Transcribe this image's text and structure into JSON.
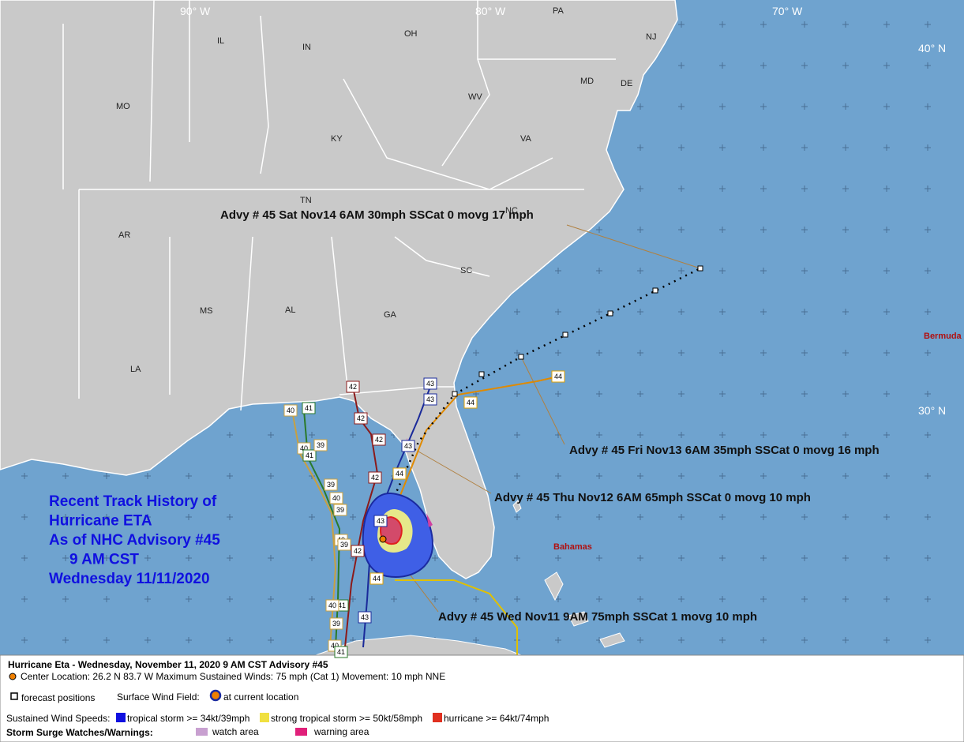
{
  "map": {
    "longitude_labels": [
      "90° W",
      "80° W",
      "70° W"
    ],
    "latitude_labels": [
      "40° N",
      "30° N"
    ],
    "state_labels": [
      "IL",
      "IN",
      "OH",
      "PA",
      "NJ",
      "MO",
      "MD",
      "DE",
      "WV",
      "KY",
      "VA",
      "TN",
      "NC",
      "AR",
      "SC",
      "MS",
      "AL",
      "GA",
      "LA"
    ],
    "place_labels": [
      "Bermuda",
      "Bahamas"
    ],
    "advisory_labels": [
      "Advy # 45 Sat Nov14 6AM  30mph SSCat 0 movg 17 mph",
      "Advy # 45 Fri Nov13 6AM  35mph SSCat 0 movg 16 mph",
      "Advy # 45 Thu Nov12 6AM  65mph SSCat 0 movg 10 mph",
      "Advy # 45 Wed Nov11 9AM  75mph SSCat 1 movg 10 mph"
    ],
    "track_history_note": [
      "Recent Track History of",
      "Hurricane ETA",
      "As of NHC Advisory #45",
      "9 AM CST",
      "Wednesday 11/11/2020"
    ],
    "track_point_labels": [
      "42",
      "42",
      "42",
      "42",
      "42",
      "43",
      "43",
      "43",
      "43",
      "43",
      "44",
      "44",
      "44",
      "44",
      "40",
      "41",
      "40",
      "41",
      "39",
      "39",
      "40",
      "39",
      "40",
      "39",
      "41",
      "40",
      "39",
      "40",
      "41"
    ]
  },
  "legend": {
    "title": "Hurricane Eta  -  Wednesday, November 11, 2020  9 AM CST   Advisory #45",
    "center_info": "Center Location: 26.2 N  83.7 W  Maximum Sustained Winds: 75 mph (Cat 1) Movement: 10 mph NNE",
    "forecast_positions": "forecast positions",
    "surface_wind_field": "Surface Wind Field:",
    "current_location": "at current location",
    "sustained_wind_speeds": "Sustained Wind Speeds:",
    "tropical_storm": "tropical storm >= 34kt/39mph",
    "strong_tropical_storm": "strong tropical storm >= 50kt/58mph",
    "hurricane": "hurricane >= 64kt/74mph",
    "storm_surge": "Storm Surge Watches/Warnings:",
    "watch_area": "watch area",
    "warning_area": "warning area"
  }
}
